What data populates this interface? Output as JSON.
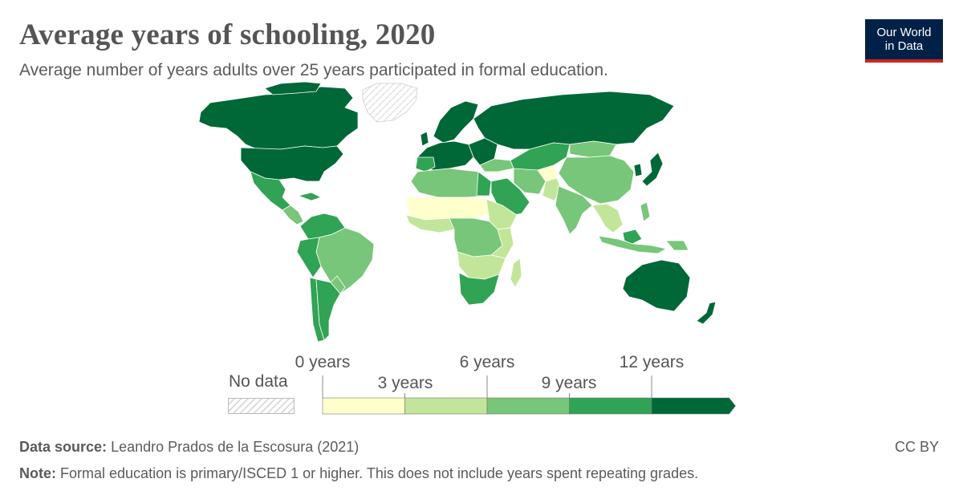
{
  "title": "Average years of schooling, 2020",
  "subtitle": "Average number of years adults over 25 years participated in formal education.",
  "logo": {
    "line1": "Our World",
    "line2": "in Data"
  },
  "legend": {
    "no_data_label": "No data",
    "bins": [
      {
        "from": 0,
        "to": 3,
        "color": "#ffffcc"
      },
      {
        "from": 3,
        "to": 6,
        "color": "#c2e699"
      },
      {
        "from": 6,
        "to": 9,
        "color": "#78c679"
      },
      {
        "from": 9,
        "to": 12,
        "color": "#31a354"
      },
      {
        "from": 12,
        "to": null,
        "color": "#006837"
      }
    ],
    "labels_top": [
      "0 years",
      "6 years",
      "12 years"
    ],
    "labels_bottom": [
      "3 years",
      "9 years"
    ]
  },
  "footer": {
    "source_label": "Data source:",
    "source_text": "Leandro Prados de la Escosura (2021)",
    "note_label": "Note:",
    "note_text": "Formal education is primary/ISCED 1 or higher. This does not include years spent repeating grades.",
    "license": "CC BY"
  },
  "colors": {
    "no_data_hatch": "#d9d9d9",
    "ocean": "#ffffff",
    "border": "#ffffff"
  }
}
